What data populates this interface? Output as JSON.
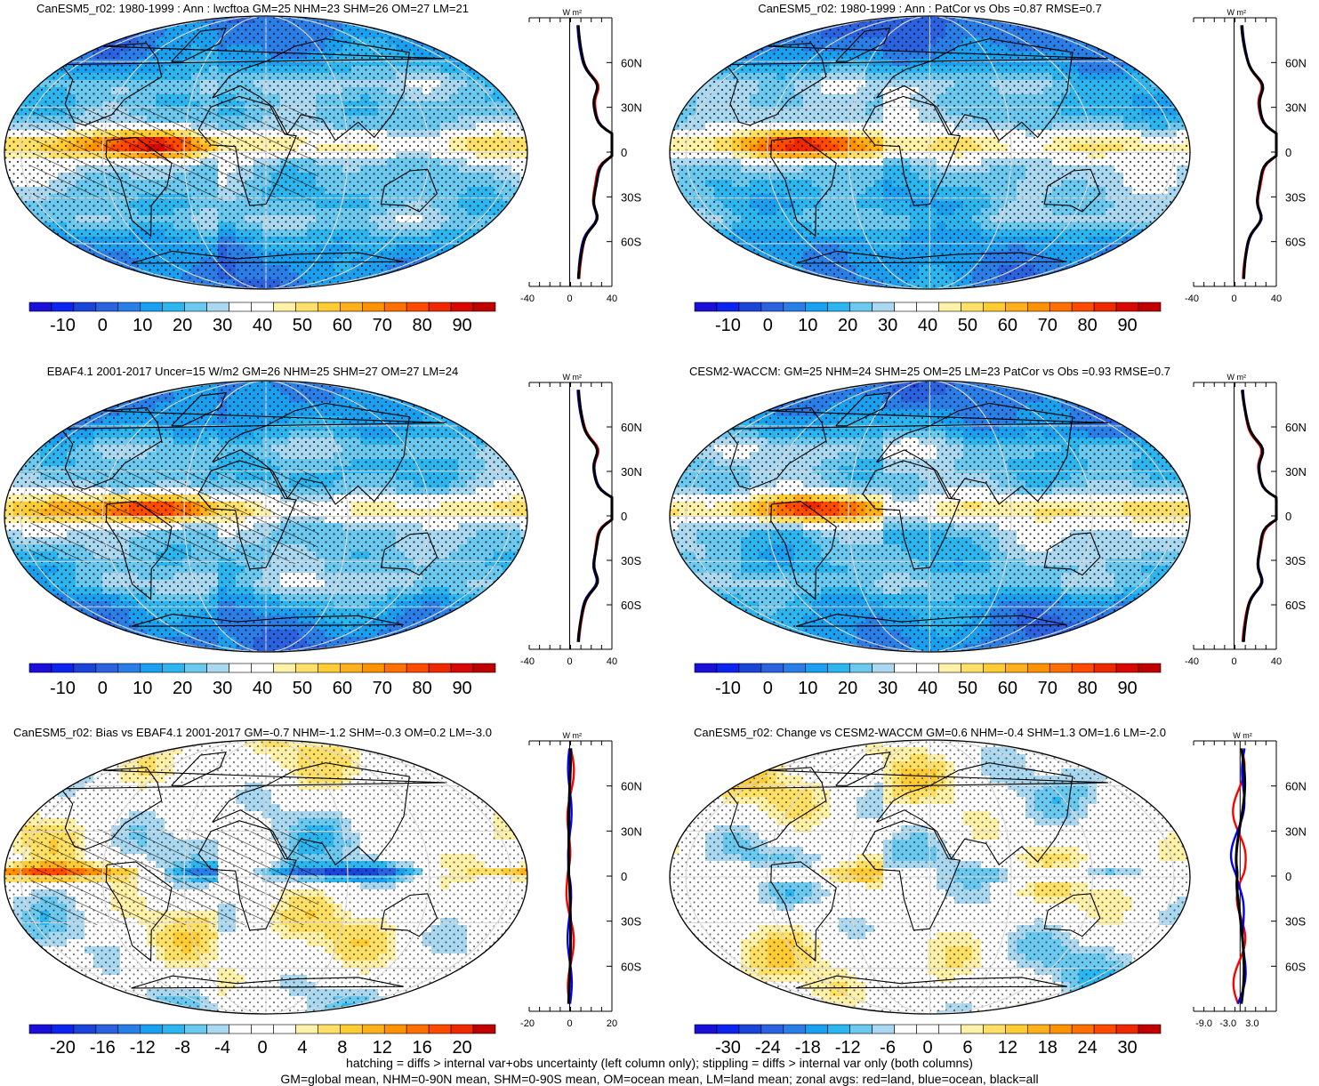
{
  "panels": [
    {
      "title": "CanESM5_r02: 1980-1999 : Ann : lwcftoa GM=25 NHM=23 SHM=26 OM=27 LM=21",
      "kind": "clim",
      "hatching": true,
      "colorbar": {
        "labels": [
          "-10",
          "0",
          "10",
          "20",
          "30",
          "40",
          "50",
          "60",
          "70",
          "80",
          "90"
        ]
      },
      "profile": {
        "unit": "W m²",
        "xticks": [
          "-40",
          "0",
          "40"
        ],
        "xrange": [
          -40,
          40
        ],
        "lat_labels": [
          "60N",
          "30N",
          "0",
          "30S",
          "60S"
        ]
      }
    },
    {
      "title": "CanESM5_r02: 1980-1999 : Ann : PatCor vs Obs =0.87 RMSE=0.7",
      "kind": "clim",
      "hatching": false,
      "colorbar": {
        "labels": [
          "-10",
          "0",
          "10",
          "20",
          "30",
          "40",
          "50",
          "60",
          "70",
          "80",
          "90"
        ]
      },
      "profile": {
        "unit": "W m²",
        "xticks": [
          "-40",
          "0",
          "40"
        ],
        "xrange": [
          -40,
          40
        ],
        "lat_labels": [
          "60N",
          "30N",
          "0",
          "30S",
          "60S"
        ]
      }
    },
    {
      "title": "EBAF4.1 2001-2017 Uncer=15 W/m2 GM=26 NHM=25 SHM=27 OM=27 LM=24",
      "kind": "clim",
      "hatching": true,
      "colorbar": {
        "labels": [
          "-10",
          "0",
          "10",
          "20",
          "30",
          "40",
          "50",
          "60",
          "70",
          "80",
          "90"
        ]
      },
      "profile": {
        "unit": "W m²",
        "xticks": [
          "-40",
          "0",
          "40"
        ],
        "xrange": [
          -40,
          40
        ],
        "lat_labels": [
          "60N",
          "30N",
          "0",
          "30S",
          "60S"
        ]
      }
    },
    {
      "title": "CESM2-WACCM: GM=25 NHM=24 SHM=25 OM=25 LM=23 PatCor vs Obs =0.93 RMSE=0.7",
      "kind": "clim",
      "hatching": false,
      "colorbar": {
        "labels": [
          "-10",
          "0",
          "10",
          "20",
          "30",
          "40",
          "50",
          "60",
          "70",
          "80",
          "90"
        ]
      },
      "profile": {
        "unit": "W m²",
        "xticks": [
          "-40",
          "0",
          "40"
        ],
        "xrange": [
          -40,
          40
        ],
        "lat_labels": [
          "60N",
          "30N",
          "0",
          "30S",
          "60S"
        ]
      }
    },
    {
      "title": "CanESM5_r02: Bias vs EBAF4.1 2001-2017 GM=-0.7 NHM=-1.2 SHM=-0.3 OM=0.2 LM=-3.0",
      "kind": "bias",
      "hatching": true,
      "colorbar": {
        "labels": [
          "-20",
          "-16",
          "-12",
          "-8",
          "-4",
          "0",
          "4",
          "8",
          "12",
          "16",
          "20"
        ]
      },
      "profile": {
        "unit": "W m²",
        "xticks": [
          "-20",
          "0",
          "20"
        ],
        "xrange": [
          -20,
          20
        ],
        "lat_labels": [
          "60N",
          "30N",
          "0",
          "30S",
          "60S"
        ]
      }
    },
    {
      "title": "CanESM5_r02: Change vs CESM2-WACCM GM=0.6 NHM=-0.4 SHM=1.3 OM=1.6 LM=-2.0",
      "kind": "change",
      "hatching": false,
      "colorbar": {
        "labels": [
          "-30",
          "-24",
          "-18",
          "-12",
          "-6",
          "0",
          "6",
          "12",
          "18",
          "24",
          "30"
        ]
      },
      "profile": {
        "unit": "W m²",
        "xticks": [
          "-9.0",
          "-3.0",
          "3.0"
        ],
        "xrange": [
          -12,
          9
        ],
        "lat_labels": [
          "60N",
          "30N",
          "0",
          "30S",
          "60S"
        ]
      }
    }
  ],
  "footer": [
    "hatching = diffs > internal var+obs uncertainty (left column only); stippling = diffs > internal var only (both columns)",
    "GM=global mean, NHM=0-90N mean, SHM=0-90S mean, OM=ocean mean, LM=land mean; zonal avgs: red=land, blue=ocean, black=all"
  ],
  "colors": {
    "clim_scale": [
      "#1a0fd8",
      "#0d24f0",
      "#1b44d8",
      "#2a62e0",
      "#2a7ee8",
      "#1aa0f0",
      "#2cb6f0",
      "#6bc8ee",
      "#a9d8f0",
      "#ffffff",
      "#ffffff",
      "#fff1a8",
      "#ffe066",
      "#ffcc33",
      "#ffb01a",
      "#ff9200",
      "#ff7000",
      "#ff4a00",
      "#f02800",
      "#d80800",
      "#c00000"
    ],
    "diff_scale": [
      "#1a0fd8",
      "#0d24f0",
      "#1b44d8",
      "#2a62e0",
      "#2a7ee8",
      "#1aa0f0",
      "#2cb6f0",
      "#6bc8ee",
      "#a9d8f0",
      "#ffffff",
      "#ffffff",
      "#ffffff",
      "#fff1a8",
      "#ffe066",
      "#ffcc33",
      "#ffb01a",
      "#ff9200",
      "#ff7000",
      "#ff4a00",
      "#f02800",
      "#c00000"
    ],
    "land_line": "#ff0000",
    "ocean_line": "#0000ff",
    "all_line": "#000000"
  }
}
